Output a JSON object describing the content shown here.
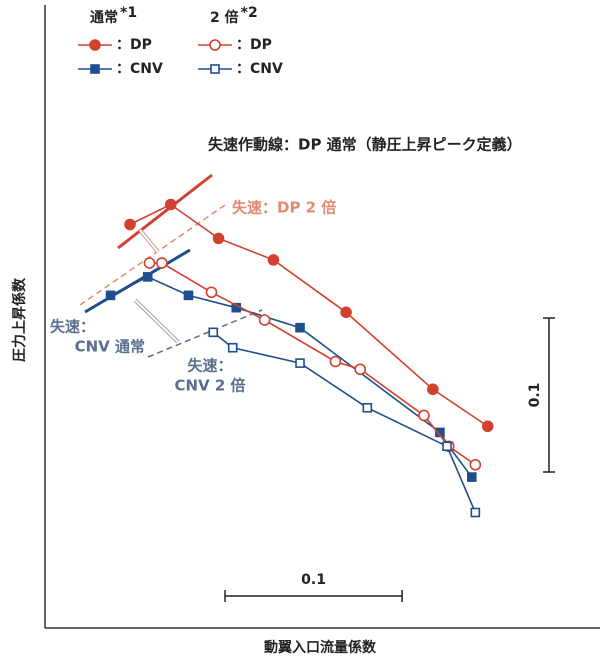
{
  "chart_data": {
    "type": "line",
    "ylabel": "圧力上昇係数",
    "xlabel": "動翼入口流量係数",
    "xlim": [
      0,
      0.31
    ],
    "ylim": [
      0,
      0.4
    ],
    "legend_groups": [
      {
        "title": "通常",
        "note": "*1"
      },
      {
        "title": "2 倍",
        "note": "*2"
      }
    ],
    "series": [
      {
        "name": "：DP",
        "color": "#d2412f",
        "marker": "circle",
        "fill": true,
        "group": 0,
        "x": [
          0.048,
          0.071,
          0.098,
          0.129,
          0.17,
          0.219,
          0.25
        ],
        "values": [
          0.262,
          0.275,
          0.253,
          0.239,
          0.205,
          0.155,
          0.131
        ]
      },
      {
        "name": "：CNV",
        "color": "#1f4e8c",
        "marker": "square",
        "fill": true,
        "group": 0,
        "x": [
          0.037,
          0.058,
          0.081,
          0.108,
          0.144,
          0.223,
          0.228,
          0.241
        ],
        "values": [
          0.216,
          0.228,
          0.216,
          0.208,
          0.195,
          0.127,
          0.118,
          0.098
        ]
      },
      {
        "name": "：DP",
        "color": "#d2412f",
        "marker": "circle",
        "fill": false,
        "group": 1,
        "x": [
          0.059,
          0.066,
          0.094,
          0.124,
          0.164,
          0.178,
          0.214,
          0.228,
          0.243
        ],
        "values": [
          0.237,
          0.237,
          0.218,
          0.2,
          0.173,
          0.168,
          0.138,
          0.118,
          0.106
        ]
      },
      {
        "name": "：CNV",
        "color": "#1f4e8c",
        "marker": "square",
        "fill": false,
        "group": 1,
        "x": [
          0.095,
          0.106,
          0.144,
          0.182,
          0.227,
          0.243
        ],
        "values": [
          0.192,
          0.182,
          0.172,
          0.143,
          0.118,
          0.075
        ]
      }
    ],
    "scale_x": {
      "value": 0.1,
      "label": "0.1"
    },
    "scale_y": {
      "value": 0.1,
      "label": "0.1"
    },
    "annotations": [
      {
        "lines": [
          "失速作動線：DP 通常（静圧上昇ピーク定義）"
        ],
        "color": "#222222"
      },
      {
        "lines": [
          "失速：DP 2 倍"
        ],
        "color": "#e08a70"
      },
      {
        "lines": [
          "失速：",
          "CNV 通常"
        ],
        "color": "#5a6f8f"
      },
      {
        "lines": [
          "失速：",
          "CNV 2 倍"
        ],
        "color": "#5a6f8f"
      }
    ]
  }
}
